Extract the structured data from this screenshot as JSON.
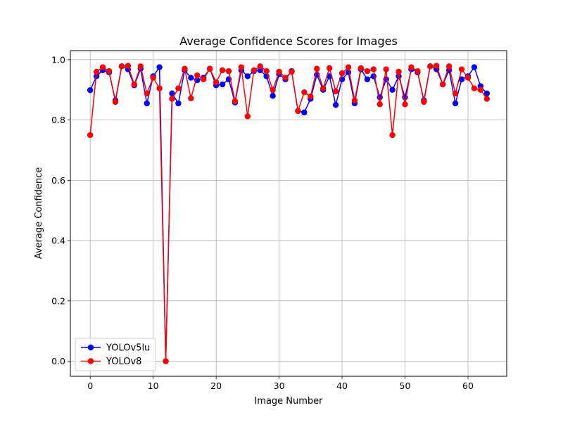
{
  "chart_data": {
    "type": "line",
    "title": "Average Confidence Scores for Images",
    "xlabel": "Image Number",
    "ylabel": "Average Confidence",
    "xlim": [
      -3.15,
      66.15
    ],
    "ylim": [
      -0.05,
      1.03
    ],
    "xticks": [
      0,
      10,
      20,
      30,
      40,
      50,
      60
    ],
    "yticks": [
      0.0,
      0.2,
      0.4,
      0.6,
      0.8,
      1.0
    ],
    "ytick_labels": [
      "0.0",
      "0.2",
      "0.4",
      "0.6",
      "0.8",
      "1.0"
    ],
    "grid": true,
    "legend_position": "lower-left",
    "x": [
      0,
      1,
      2,
      3,
      4,
      5,
      6,
      7,
      8,
      9,
      10,
      11,
      12,
      13,
      14,
      15,
      16,
      17,
      18,
      19,
      20,
      21,
      22,
      23,
      24,
      25,
      26,
      27,
      28,
      29,
      30,
      31,
      32,
      33,
      34,
      35,
      36,
      37,
      38,
      39,
      40,
      41,
      42,
      43,
      44,
      45,
      46,
      47,
      48,
      49,
      50,
      51,
      52,
      53,
      54,
      55,
      56,
      57,
      58,
      59,
      60,
      61,
      62,
      63
    ],
    "series": [
      {
        "name": "YOLOv5lu",
        "color": "#0000ff",
        "values": [
          0.899,
          0.945,
          0.965,
          0.958,
          0.865,
          0.978,
          0.968,
          0.915,
          0.97,
          0.855,
          0.945,
          0.975,
          0.0,
          0.888,
          0.855,
          0.965,
          0.94,
          0.932,
          0.94,
          0.97,
          0.915,
          0.918,
          0.935,
          0.858,
          0.965,
          0.945,
          0.962,
          0.965,
          0.945,
          0.88,
          0.952,
          0.935,
          0.962,
          0.83,
          0.825,
          0.87,
          0.95,
          0.9,
          0.945,
          0.85,
          0.935,
          0.958,
          0.855,
          0.968,
          0.935,
          0.945,
          0.875,
          0.935,
          0.9,
          0.945,
          0.875,
          0.968,
          0.958,
          0.865,
          0.978,
          0.968,
          0.918,
          0.965,
          0.855,
          0.935,
          0.945,
          0.975,
          0.912,
          0.888
        ]
      },
      {
        "name": "YOLOv8",
        "color": "#ff0000",
        "values": [
          0.75,
          0.96,
          0.975,
          0.962,
          0.86,
          0.978,
          0.98,
          0.918,
          0.978,
          0.888,
          0.94,
          0.905,
          0.0,
          0.87,
          0.905,
          0.97,
          0.872,
          0.948,
          0.935,
          0.97,
          0.925,
          0.965,
          0.962,
          0.862,
          0.975,
          0.812,
          0.965,
          0.978,
          0.962,
          0.9,
          0.96,
          0.94,
          0.96,
          0.83,
          0.892,
          0.878,
          0.97,
          0.905,
          0.972,
          0.895,
          0.955,
          0.975,
          0.865,
          0.972,
          0.962,
          0.968,
          0.852,
          0.968,
          0.75,
          0.96,
          0.852,
          0.975,
          0.962,
          0.86,
          0.978,
          0.98,
          0.918,
          0.978,
          0.888,
          0.968,
          0.94,
          0.905,
          0.9,
          0.87
        ]
      }
    ]
  }
}
